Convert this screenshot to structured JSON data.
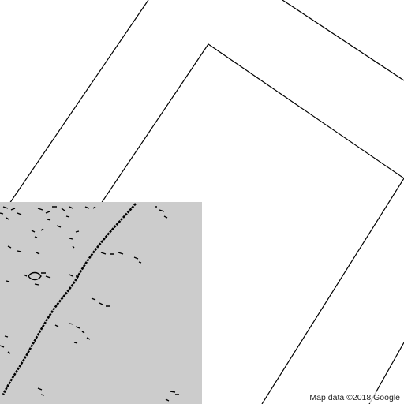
{
  "map": {
    "attribution": "Map data ©2018 Google",
    "background_color": "#ffffff",
    "tile_placeholder_color": "#cccccc",
    "line_color": "#000000",
    "tiles_loaded": "partial (bottom-left tile loaded with low-detail speckle, others blank)"
  }
}
